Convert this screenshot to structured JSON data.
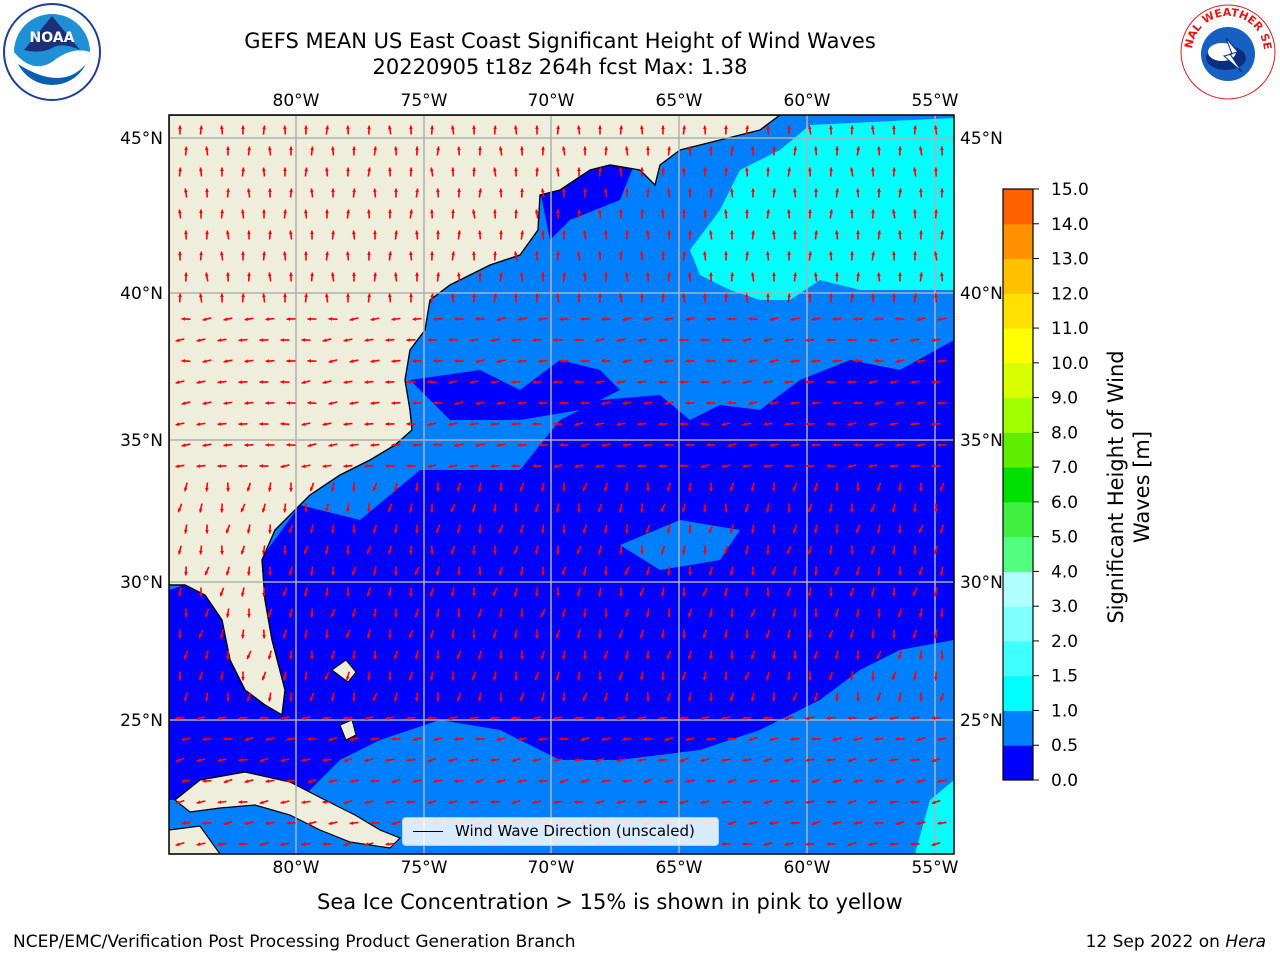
{
  "title": {
    "line1": "GEFS MEAN US East Coast Significant Height of Wind Waves",
    "line2": "20220905 t18z 264h fcst   Max: 1.38"
  },
  "map": {
    "projection": "lat-lon",
    "lon_range": [
      -85,
      -54.5
    ],
    "lat_range": [
      20.5,
      46
    ],
    "lon_ticks": [
      "80°W",
      "75°W",
      "70°W",
      "65°W",
      "60°W",
      "55°W"
    ],
    "lat_ticks": [
      "45°N",
      "40°N",
      "35°N",
      "30°N",
      "25°N"
    ],
    "land_color": "#efeedd",
    "grid_color": "#b0b0b0",
    "arrow_color": "#ff0000",
    "gridlines": true
  },
  "colorbar": {
    "label": "Significant Height of Wind Waves [m]",
    "ticks": [
      "15.0",
      "14.0",
      "13.0",
      "12.0",
      "11.0",
      "10.0",
      "9.0",
      "8.0",
      "7.0",
      "6.0",
      "5.0",
      "4.0",
      "3.0",
      "2.0",
      "1.5",
      "1.0",
      "0.5",
      "0.0"
    ],
    "colors": [
      "#0000ff",
      "#0080ff",
      "#00ffff",
      "#40ffff",
      "#80ffff",
      "#b0ffff",
      "#50ff80",
      "#40f040",
      "#00e000",
      "#60ee00",
      "#a0ff00",
      "#d8ff00",
      "#ffff00",
      "#ffe000",
      "#ffc000",
      "#ff9000",
      "#ff6000",
      "#ff3000",
      "#ff0000"
    ]
  },
  "legend": {
    "label": "Wind Wave Direction (unscaled)"
  },
  "note": "Sea Ice Concentration > 15% is shown in pink to yellow",
  "footer": {
    "left": "NCEP/EMC/Verification Post Processing Product Generation Branch",
    "right_date": "12 Sep 2022 on ",
    "right_machine": "Hera"
  },
  "logos": {
    "noaa_text": "NOAA",
    "nws_text": "NATIONAL WEATHER SERVICE"
  }
}
